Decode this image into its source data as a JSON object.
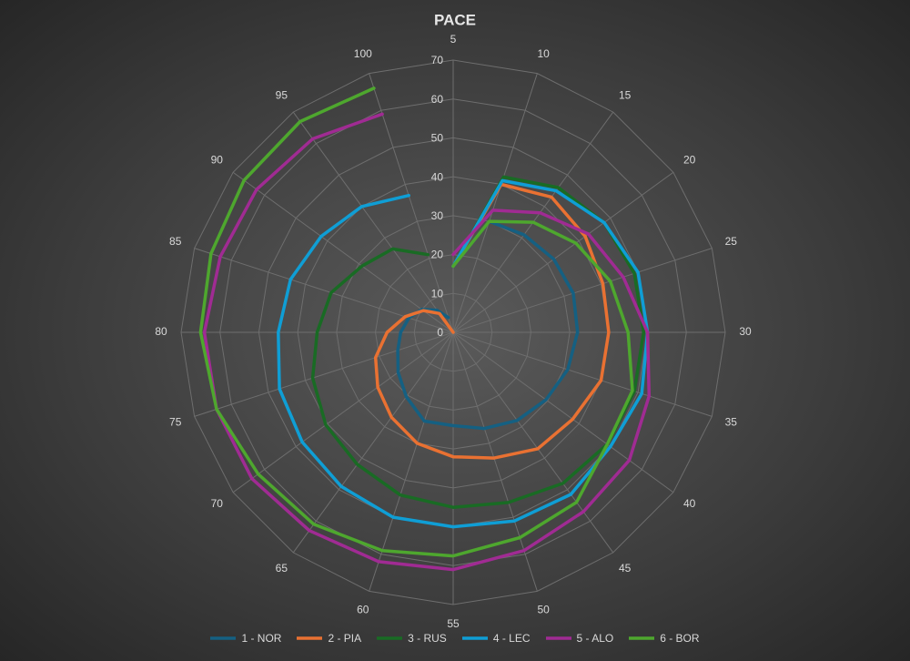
{
  "chart_data": {
    "type": "radar",
    "title": "PACE",
    "categories": [
      "5",
      "10",
      "15",
      "20",
      "25",
      "30",
      "35",
      "40",
      "45",
      "50",
      "55",
      "60",
      "65",
      "70",
      "75",
      "80",
      "85",
      "90",
      "95",
      "100"
    ],
    "rlim": [
      0,
      70
    ],
    "rticks": [
      0,
      10,
      20,
      30,
      40,
      50,
      60,
      70
    ],
    "grid": true,
    "legend": "bottom",
    "series": [
      {
        "name": "1 - NOR",
        "color": "#156082",
        "values": [
          17,
          30,
          31,
          32,
          32.5,
          32,
          31,
          29.5,
          28,
          26,
          24,
          24,
          20.5,
          17.5,
          15,
          13.5,
          12,
          10,
          7,
          4
        ]
      },
      {
        "name": "2 - PIA",
        "color": "#e97132",
        "values": [
          17,
          40,
          43,
          42,
          40.5,
          40,
          40,
          38,
          37,
          34,
          32,
          30,
          27,
          24,
          21,
          17,
          13,
          9.5,
          6,
          0
        ]
      },
      {
        "name": "3 - RUS",
        "color": "#196b24",
        "values": [
          17,
          42,
          46,
          48,
          49,
          49,
          49,
          49,
          48,
          46,
          45,
          44,
          42,
          40.5,
          38,
          35,
          33,
          29,
          26.5,
          21
        ]
      },
      {
        "name": "4 - LEC",
        "color": "#0f9ed5",
        "values": [
          17,
          41,
          45,
          48,
          50,
          50,
          51,
          50,
          51.5,
          51,
          50,
          50,
          49,
          48,
          47,
          45,
          44,
          42,
          40,
          37
        ]
      },
      {
        "name": "5 - ALO",
        "color": "#a02b93",
        "values": [
          20,
          33,
          38,
          43,
          46,
          50,
          53,
          56,
          57,
          59,
          61,
          62,
          63,
          64,
          64,
          64,
          63,
          62.5,
          61.5,
          59
        ]
      },
      {
        "name": "6 - BOR",
        "color": "#4ea72e",
        "values": [
          17,
          30,
          35,
          39,
          42.5,
          45,
          48.5,
          49,
          54,
          55.5,
          57.5,
          59,
          61,
          62,
          64,
          65,
          65.5,
          66.5,
          67,
          66
        ]
      }
    ]
  }
}
